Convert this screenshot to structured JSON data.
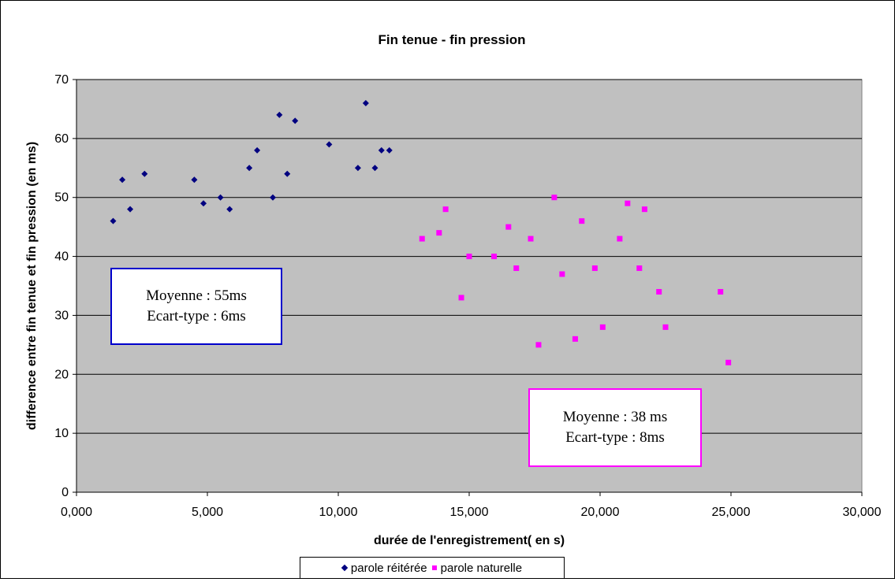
{
  "chart_data": {
    "type": "scatter",
    "title": "Fin tenue - fin pression",
    "xlabel": "durée de l'enregistrement( en s)",
    "ylabel": "difference entre fin tenue et fin pression (en ms)",
    "xlim": [
      0,
      30
    ],
    "ylim": [
      0,
      70
    ],
    "x_ticks": [
      0,
      5,
      10,
      15,
      20,
      25,
      30
    ],
    "x_tick_labels": [
      "0,000",
      "5,000",
      "10,000",
      "15,000",
      "20,000",
      "25,000",
      "30,000"
    ],
    "y_ticks": [
      0,
      10,
      20,
      30,
      40,
      50,
      60,
      70
    ],
    "y_tick_labels": [
      "0",
      "10",
      "20",
      "30",
      "40",
      "50",
      "60",
      "70"
    ],
    "grid": "horizontal",
    "plot_background": "#c0c0c0",
    "legend_position": "bottom",
    "series": [
      {
        "name": "parole réitérée",
        "marker": "diamond",
        "color": "#000080",
        "points": [
          [
            1.4,
            46
          ],
          [
            1.75,
            53
          ],
          [
            2.05,
            48
          ],
          [
            2.6,
            54
          ],
          [
            4.5,
            53
          ],
          [
            4.85,
            49
          ],
          [
            5.5,
            50
          ],
          [
            5.85,
            48
          ],
          [
            6.6,
            55
          ],
          [
            6.9,
            58
          ],
          [
            7.5,
            50
          ],
          [
            7.75,
            64
          ],
          [
            8.05,
            54
          ],
          [
            8.35,
            63
          ],
          [
            9.65,
            59
          ],
          [
            10.75,
            55
          ],
          [
            11.05,
            66
          ],
          [
            11.4,
            55
          ],
          [
            11.65,
            58
          ],
          [
            11.95,
            58
          ]
        ]
      },
      {
        "name": "parole naturelle",
        "marker": "square",
        "color": "#ff00ff",
        "points": [
          [
            13.2,
            43
          ],
          [
            13.85,
            44
          ],
          [
            14.1,
            48
          ],
          [
            14.7,
            33
          ],
          [
            15.0,
            40
          ],
          [
            15.95,
            40
          ],
          [
            16.5,
            45
          ],
          [
            16.8,
            38
          ],
          [
            17.35,
            43
          ],
          [
            17.65,
            25
          ],
          [
            18.25,
            50
          ],
          [
            18.55,
            37
          ],
          [
            19.05,
            26
          ],
          [
            19.3,
            46
          ],
          [
            19.8,
            38
          ],
          [
            20.1,
            28
          ],
          [
            20.75,
            43
          ],
          [
            21.05,
            49
          ],
          [
            21.5,
            38
          ],
          [
            21.7,
            48
          ],
          [
            22.25,
            34
          ],
          [
            22.5,
            28
          ],
          [
            24.6,
            34
          ],
          [
            24.9,
            22
          ]
        ]
      }
    ],
    "annotations": [
      {
        "lines": [
          "Moyenne : 55ms",
          "Ecart-type : 6ms"
        ],
        "border_color": "#0000cc"
      },
      {
        "lines": [
          "Moyenne : 38 ms",
          "Ecart-type : 8ms"
        ],
        "border_color": "#ff00ff"
      }
    ]
  }
}
